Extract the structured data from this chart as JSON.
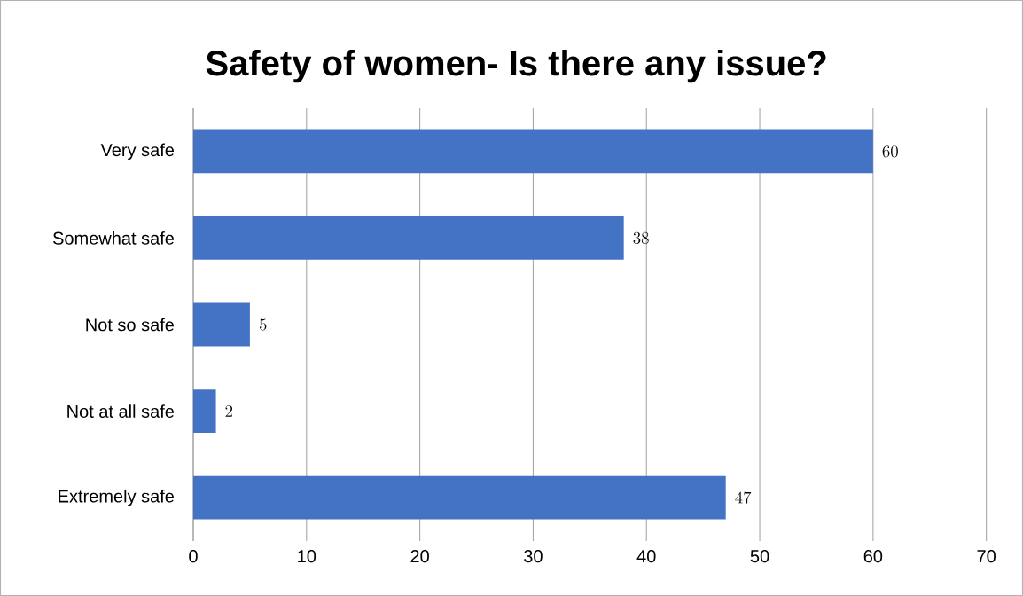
{
  "chart_data": {
    "type": "bar",
    "orientation": "horizontal",
    "title": "Safety of women- Is there any issue?",
    "categories": [
      "Very safe",
      "Somewhat safe",
      "Not so safe",
      "Not at all safe",
      "Extremely safe"
    ],
    "values": [
      60,
      38,
      5,
      2,
      47
    ],
    "color": "#4472c4",
    "xlim": [
      0,
      70
    ],
    "xticks": [
      0,
      10,
      20,
      30,
      40,
      50,
      60,
      70
    ],
    "grid": "x",
    "data_labels": true
  }
}
